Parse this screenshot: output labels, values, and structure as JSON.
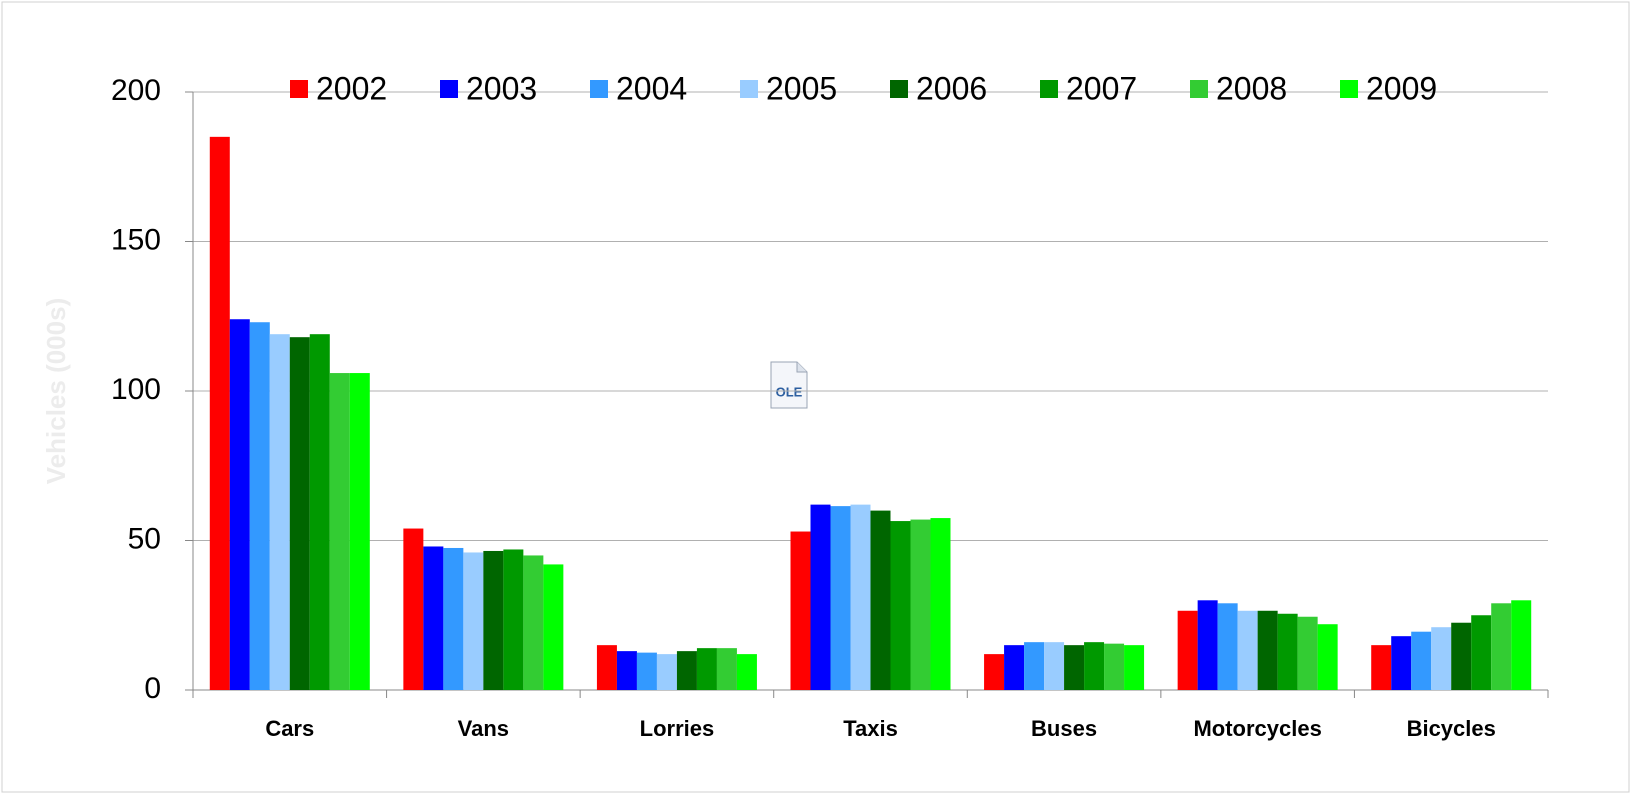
{
  "chart_data": {
    "type": "bar",
    "y_label": "Vehicles (000s)",
    "annotation": "OLE",
    "categories": [
      "Cars",
      "Vans",
      "Lorries",
      "Taxis",
      "Buses",
      "Motorcycles",
      "Bicycles"
    ],
    "series": [
      {
        "name": "2002",
        "color": "#ff0000",
        "values": [
          185,
          54,
          15,
          53,
          12,
          26.5,
          15
        ]
      },
      {
        "name": "2003",
        "color": "#0000ff",
        "values": [
          124,
          48,
          13,
          62,
          15,
          30,
          18
        ]
      },
      {
        "name": "2004",
        "color": "#3399ff",
        "values": [
          123,
          47.5,
          12.5,
          61.5,
          16,
          29,
          19.5
        ]
      },
      {
        "name": "2005",
        "color": "#99ccff",
        "values": [
          119,
          46,
          12,
          62,
          16,
          26.5,
          21
        ]
      },
      {
        "name": "2006",
        "color": "#006600",
        "values": [
          118,
          46.5,
          13,
          60,
          15,
          26.5,
          22.5
        ]
      },
      {
        "name": "2007",
        "color": "#009900",
        "values": [
          119,
          47,
          14,
          56.5,
          16,
          25.5,
          25
        ]
      },
      {
        "name": "2008",
        "color": "#33cc33",
        "values": [
          106,
          45,
          14,
          57,
          15.5,
          24.5,
          29
        ]
      },
      {
        "name": "2009",
        "color": "#00ff00",
        "values": [
          106,
          42,
          12,
          57.5,
          15,
          22,
          30
        ]
      }
    ],
    "ylim": [
      0,
      200
    ],
    "yticks": [
      0,
      50,
      100,
      150,
      200
    ],
    "grid": true,
    "legend": "top"
  }
}
